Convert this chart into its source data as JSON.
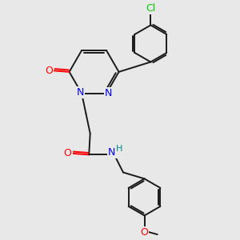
{
  "background_color": "#e8e8e8",
  "bond_color": "#1a1a1a",
  "bond_width": 1.4,
  "atom_colors": {
    "N": "#0000ee",
    "O": "#ff0000",
    "Cl": "#00cc00",
    "NH": "#008888"
  },
  "font_size": 9
}
